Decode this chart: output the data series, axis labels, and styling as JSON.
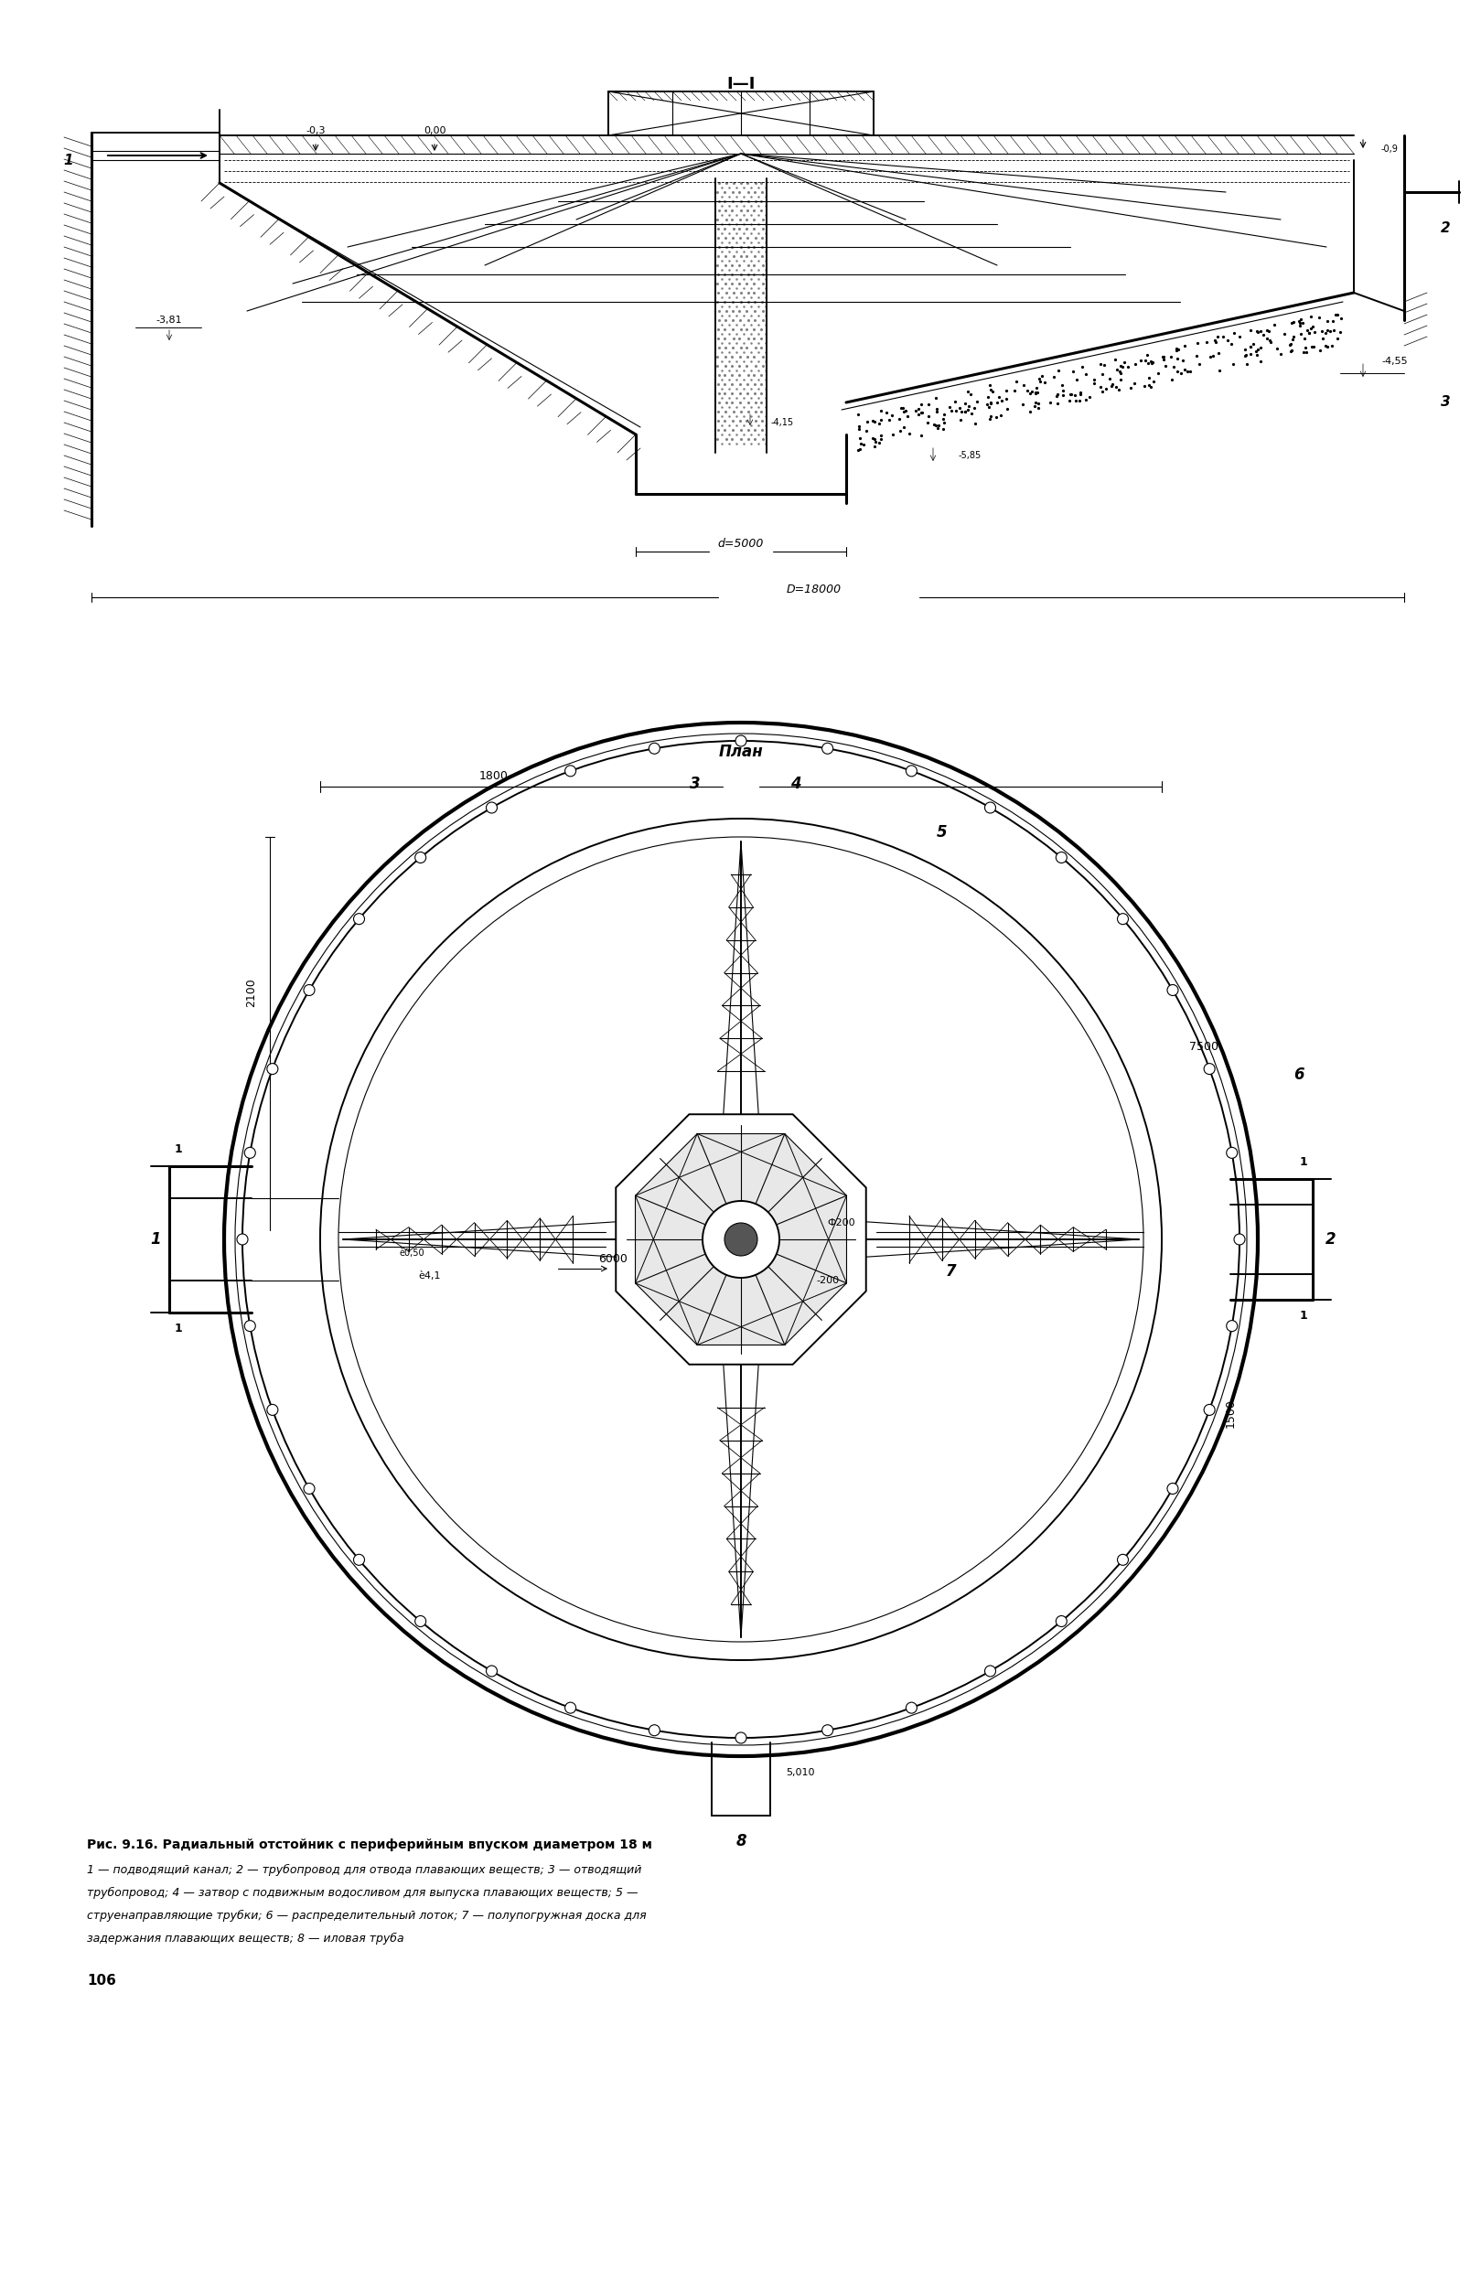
{
  "figure_width": 16.19,
  "figure_height": 24.96,
  "bg_color": "#ffffff",
  "line_color": "#000000",
  "title_section": "I—I",
  "plan_label": "План",
  "caption_bold": "Рис. 9.16. Радиальный отстойник с периферийным впуском диаметром 18 м",
  "page_number": "106",
  "dim_d5000": "d=5000",
  "dim_D18000": "D=18000",
  "dim_03": "-0,3",
  "dim_000": "0,00",
  "dim_09": "-0,9",
  "dim_381": "-3,81",
  "dim_455": "-4,55",
  "dim_585": "-5,85",
  "dim_415": "-4,15",
  "dim_1800": "1800",
  "dim_7500": "7500",
  "dim_2100": "2100",
  "dim_1500": "1500",
  "dim_6000": "6000",
  "dim_050": "ѐ0,50",
  "dim_41": "ѐ4,1",
  "dim_200a": "Ф200",
  "dim_200b": "-200",
  "dim_5010": "5,010",
  "cap_line1": "1 — подводящий канал; 2 — трубопровод для отвода плавающих веществ; 3 — отводящий",
  "cap_line2": "трубопровод; 4 — затвор с подвижным водосливом для выпуска плавающих веществ; 5 —",
  "cap_line3": "струенаправляющие трубки; 6 — распределительный лоток; 7 — полупогружная доска для",
  "cap_line4": "задержания плавающих веществ; 8 — иловая труба"
}
